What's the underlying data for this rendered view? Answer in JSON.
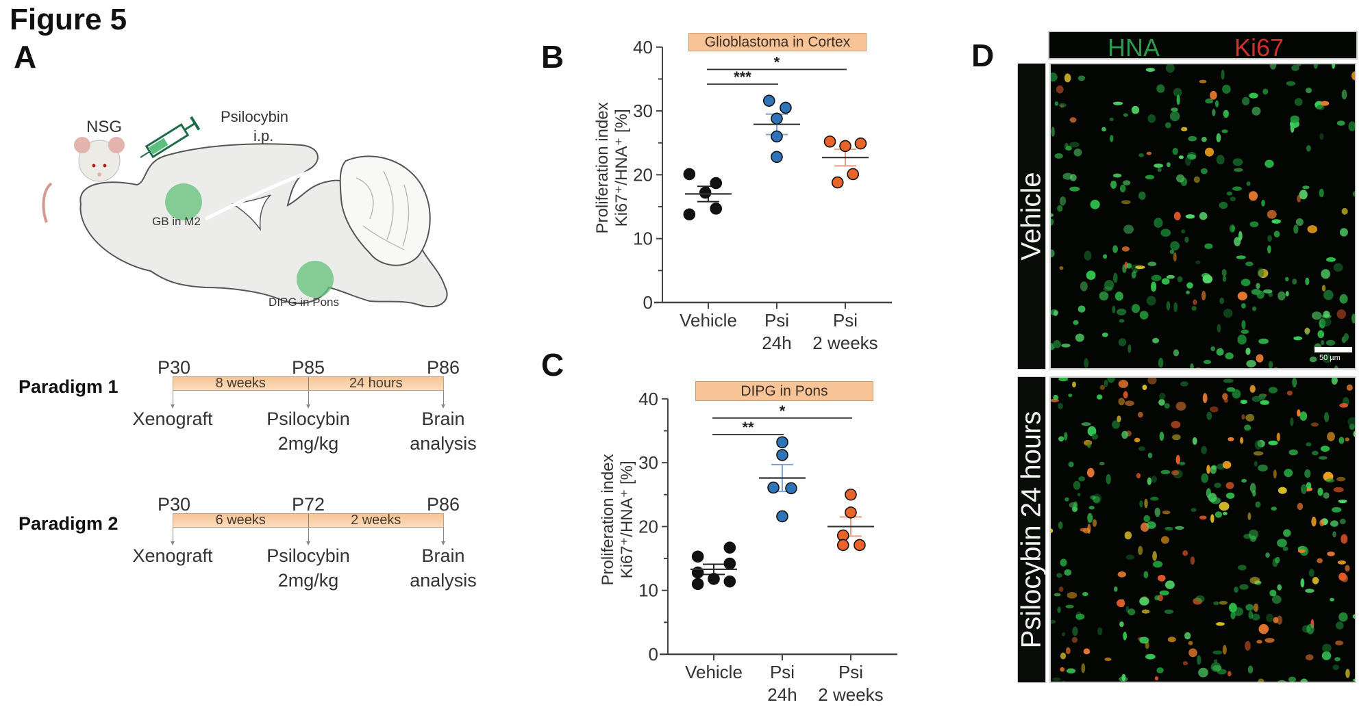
{
  "figure_title": "Figure 5",
  "panels": {
    "A": {
      "letter": "A",
      "schematic": {
        "mouse_label": "NSG",
        "drug_label_line1": "Psilocybin",
        "drug_label_line2": "i.p.",
        "tumor1_label": "GB in M2",
        "tumor2_label": "DIPG in Pons"
      },
      "paradigms": [
        {
          "label": "Paradigm 1",
          "timepoints": [
            "P30",
            "P85",
            "P86"
          ],
          "durations": [
            "8 weeks",
            "24 hours"
          ],
          "events": [
            {
              "line1": "Xenograft",
              "line2": ""
            },
            {
              "line1": "Psilocybin",
              "line2": "2mg/kg"
            },
            {
              "line1": "Brain",
              "line2": "analysis"
            }
          ]
        },
        {
          "label": "Paradigm 2",
          "timepoints": [
            "P30",
            "P72",
            "P86"
          ],
          "durations": [
            "6 weeks",
            "2 weeks"
          ],
          "events": [
            {
              "line1": "Xenograft",
              "line2": ""
            },
            {
              "line1": "Psilocybin",
              "line2": "2mg/kg"
            },
            {
              "line1": "Brain",
              "line2": "analysis"
            }
          ]
        }
      ]
    },
    "B": {
      "letter": "B"
    },
    "C": {
      "letter": "C"
    },
    "D": {
      "letter": "D",
      "channel_labels": [
        {
          "text": "HNA",
          "color": "#2e9a4e"
        },
        {
          "text": "Ki67",
          "color": "#d0312d"
        }
      ],
      "row_labels": [
        "Vehicle",
        "Psilocybin 24 hours"
      ],
      "scale_bar_label": "50 µm"
    }
  },
  "colors": {
    "vehicle": "#111111",
    "psi_24h": "#2f73b8",
    "psi_2w": "#e8642a",
    "psi_24h_err": "#7aa3d6",
    "psi_2w_err": "#f09a7a",
    "title_box": "#f7c497"
  },
  "chart_data": [
    {
      "id": "B",
      "type": "scatter",
      "title": "Glioblastoma in Cortex",
      "xlabel": "",
      "ylabel_line1": "Proliferation index",
      "ylabel_line2": "Ki67⁺/HNA⁺ [%]",
      "ylim": [
        0,
        40
      ],
      "yticks": [
        0,
        10,
        20,
        30,
        40
      ],
      "y_minor_step": 5,
      "grid": false,
      "categories": [
        {
          "line1": "Vehicle",
          "line2": ""
        },
        {
          "line1": "Psi",
          "line2": "24h"
        },
        {
          "line1": "Psi",
          "line2": "2 weeks"
        }
      ],
      "series": [
        {
          "name": "Vehicle",
          "color_key": "vehicle",
          "points": [
            [
              -0.32,
              20.1
            ],
            [
              0.13,
              18.7
            ],
            [
              -0.05,
              17.2
            ],
            [
              0.13,
              14.7
            ],
            [
              -0.32,
              13.8
            ]
          ],
          "mean": 17.0,
          "sem": 1.2
        },
        {
          "name": "Psi 24h",
          "color_key": "psi_24h",
          "points": [
            [
              -0.13,
              31.6
            ],
            [
              0.15,
              30.5
            ],
            [
              0.0,
              28.8
            ],
            [
              0.0,
              26.0
            ],
            [
              0.0,
              22.8
            ]
          ],
          "mean": 27.9,
          "sem": 1.6
        },
        {
          "name": "Psi 2 weeks",
          "color_key": "psi_2w",
          "points": [
            [
              -0.26,
              25.2
            ],
            [
              0.0,
              24.5
            ],
            [
              0.26,
              24.9
            ],
            [
              0.13,
              20.1
            ],
            [
              -0.13,
              18.8
            ]
          ],
          "mean": 22.7,
          "sem": 1.3
        }
      ],
      "significance": [
        {
          "from": 0,
          "to": 2,
          "label": "*",
          "y": 36.5
        },
        {
          "from": 0,
          "to": 1,
          "label": "***",
          "y": 34.2
        }
      ]
    },
    {
      "id": "C",
      "type": "scatter",
      "title": "DIPG in Pons",
      "xlabel": "",
      "ylabel_line1": "Proliferation index",
      "ylabel_line2": "Ki67⁺/HNA⁺ [%]",
      "ylim": [
        0,
        40
      ],
      "yticks": [
        0,
        10,
        20,
        30,
        40
      ],
      "y_minor_step": 5,
      "grid": false,
      "categories": [
        {
          "line1": "Vehicle",
          "line2": ""
        },
        {
          "line1": "Psi",
          "line2": "24h"
        },
        {
          "line1": "Psi",
          "line2": "2 weeks"
        }
      ],
      "series": [
        {
          "name": "Vehicle",
          "color_key": "vehicle",
          "points": [
            [
              -0.27,
              15.3
            ],
            [
              -0.27,
              12.8
            ],
            [
              -0.27,
              11.0
            ],
            [
              0.0,
              11.8
            ],
            [
              0.27,
              16.7
            ],
            [
              0.27,
              14.2
            ],
            [
              0.27,
              11.4
            ]
          ],
          "mean": 13.3,
          "sem": 0.8
        },
        {
          "name": "Psi 24h",
          "color_key": "psi_24h",
          "points": [
            [
              0.0,
              33.2
            ],
            [
              0.0,
              31.2
            ],
            [
              -0.15,
              26.1
            ],
            [
              0.15,
              26.0
            ],
            [
              0.0,
              21.6
            ]
          ],
          "mean": 27.6,
          "sem": 2.1
        },
        {
          "name": "Psi 2 weeks",
          "color_key": "psi_2w",
          "points": [
            [
              0.0,
              25.0
            ],
            [
              0.0,
              22.2
            ],
            [
              -0.13,
              18.6
            ],
            [
              -0.13,
              17.1
            ],
            [
              0.15,
              17.1
            ]
          ],
          "mean": 20.0,
          "sem": 1.5
        }
      ],
      "significance": [
        {
          "from": 0,
          "to": 2,
          "label": "*",
          "y": 37.0
        },
        {
          "from": 0,
          "to": 1,
          "label": "**",
          "y": 34.4
        }
      ]
    }
  ]
}
